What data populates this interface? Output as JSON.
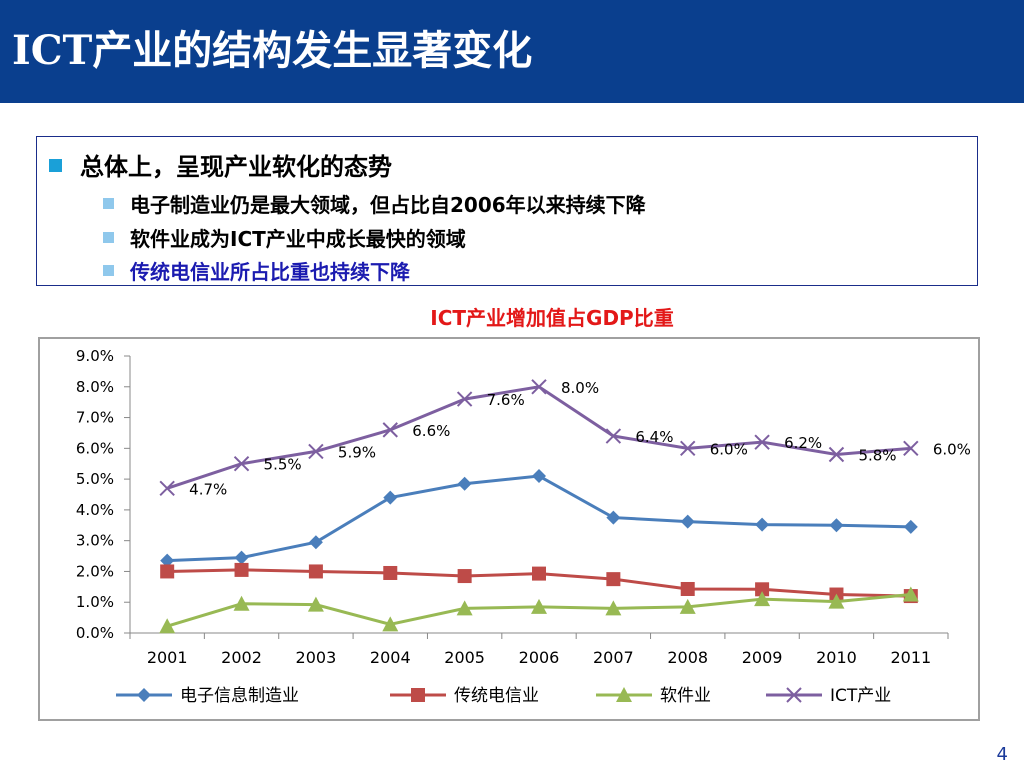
{
  "title": "ICT产业的结构发生显著变化",
  "bullets": {
    "main": "总体上，呈现产业软化的态势",
    "sub": [
      "电子制造业仍是最大领域，但占比自2006年以来持续下降",
      "软件业成为ICT产业中成长最快的领域",
      "传统电信业所占比重也持续下降"
    ]
  },
  "page_number": "4",
  "colors": {
    "title_bar": "#0a3f8e",
    "chart_title": "#e31818",
    "series_electronics": "#4a7ebb",
    "series_telecom": "#be4b48",
    "series_software": "#98b954",
    "series_ict": "#7d5fa0"
  },
  "chart_data": {
    "type": "line",
    "title": "ICT产业增加值占GDP比重",
    "categories": [
      "2001",
      "2002",
      "2003",
      "2004",
      "2005",
      "2006",
      "2007",
      "2008",
      "2009",
      "2010",
      "2011"
    ],
    "yticks": [
      "0.0%",
      "1.0%",
      "2.0%",
      "3.0%",
      "4.0%",
      "5.0%",
      "6.0%",
      "7.0%",
      "8.0%",
      "9.0%"
    ],
    "ylim": [
      0,
      9
    ],
    "legend_position": "bottom",
    "series": [
      {
        "name": "电子信息制造业",
        "marker": "diamond",
        "values": [
          2.35,
          2.45,
          2.95,
          4.4,
          4.85,
          5.1,
          3.75,
          3.62,
          3.52,
          3.5,
          3.45
        ]
      },
      {
        "name": "传统电信业",
        "marker": "square",
        "values": [
          2.0,
          2.05,
          2.0,
          1.95,
          1.85,
          1.93,
          1.75,
          1.43,
          1.42,
          1.25,
          1.2
        ]
      },
      {
        "name": "软件业",
        "marker": "triangle",
        "values": [
          0.22,
          0.95,
          0.92,
          0.28,
          0.8,
          0.85,
          0.8,
          0.85,
          1.1,
          1.02,
          1.25
        ]
      },
      {
        "name": "ICT产业",
        "marker": "x",
        "values": [
          4.7,
          5.5,
          5.9,
          6.6,
          7.6,
          8.0,
          6.4,
          6.0,
          6.2,
          5.8,
          6.0
        ],
        "labels": [
          "4.7%",
          "5.5%",
          "5.9%",
          "6.6%",
          "7.6%",
          "8.0%",
          "6.4%",
          "6.0%",
          "6.2%",
          "5.8%",
          "6.0%"
        ]
      }
    ]
  }
}
